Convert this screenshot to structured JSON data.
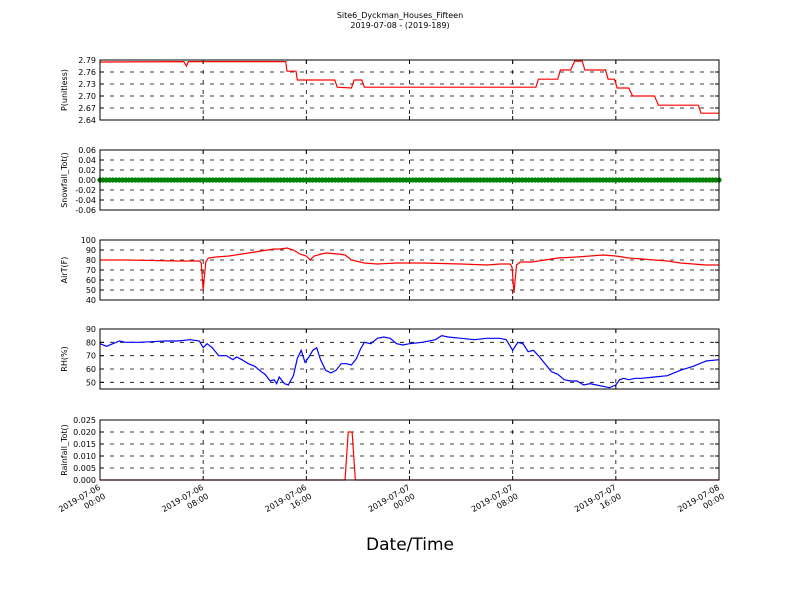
{
  "figure": {
    "title": "Site6_Dyckman_Houses_Fifteen",
    "subtitle": "2019-07-08 - (2019-189)",
    "xlabel": "Date/Time"
  },
  "chart_data": {
    "type": "line",
    "x_range": [
      "2019-07-06 00:00",
      "2019-07-08 00:00"
    ],
    "x_ticks": [
      {
        "x": "2019-07-06 00:00",
        "line1": "2019-07-06",
        "line2": "00:00"
      },
      {
        "x": "2019-07-06 08:00",
        "line1": "2019-07-06",
        "line2": "08:00"
      },
      {
        "x": "2019-07-06 16:00",
        "line1": "2019-07-06",
        "line2": "16:00"
      },
      {
        "x": "2019-07-07 00:00",
        "line1": "2019-07-07",
        "line2": "00:00"
      },
      {
        "x": "2019-07-07 08:00",
        "line1": "2019-07-07",
        "line2": "08:00"
      },
      {
        "x": "2019-07-07 16:00",
        "line1": "2019-07-07",
        "line2": "16:00"
      },
      {
        "x": "2019-07-08 00:00",
        "line1": "2019-07-08",
        "line2": "00:00"
      }
    ],
    "grid": true,
    "panels": [
      {
        "ylabel": "P(unitless)",
        "ylim": [
          2.64,
          2.79
        ],
        "yticks": [
          2.64,
          2.67,
          2.7,
          2.73,
          2.76,
          2.79
        ],
        "tick_decimals": 2,
        "color": "#ff0000",
        "marker": false,
        "points": [
          [
            0,
            2.785
          ],
          [
            6.5,
            2.786
          ],
          [
            6.7,
            2.775
          ],
          [
            6.85,
            2.786
          ],
          [
            14.4,
            2.786
          ],
          [
            14.5,
            2.762
          ],
          [
            15.2,
            2.762
          ],
          [
            15.3,
            2.74
          ],
          [
            18.2,
            2.74
          ],
          [
            18.4,
            2.722
          ],
          [
            19.5,
            2.72
          ],
          [
            19.7,
            2.74
          ],
          [
            20.3,
            2.74
          ],
          [
            20.5,
            2.722
          ],
          [
            33.8,
            2.722
          ],
          [
            34.0,
            2.742
          ],
          [
            35.5,
            2.742
          ],
          [
            35.7,
            2.765
          ],
          [
            36.5,
            2.765
          ],
          [
            36.8,
            2.787
          ],
          [
            37.4,
            2.787
          ],
          [
            37.6,
            2.765
          ],
          [
            39.2,
            2.765
          ],
          [
            39.4,
            2.742
          ],
          [
            39.9,
            2.742
          ],
          [
            40.1,
            2.72
          ],
          [
            41.0,
            2.72
          ],
          [
            41.3,
            2.7
          ],
          [
            43.0,
            2.7
          ],
          [
            43.3,
            2.677
          ],
          [
            46.4,
            2.677
          ],
          [
            46.6,
            2.657
          ],
          [
            48.0,
            2.657
          ]
        ]
      },
      {
        "ylabel": "Snowfall_Tot()",
        "ylim": [
          -0.06,
          0.06
        ],
        "yticks": [
          -0.06,
          -0.04,
          -0.02,
          0.0,
          0.02,
          0.04,
          0.06
        ],
        "tick_decimals": 2,
        "color": "#008000",
        "marker": true,
        "points": [
          [
            0,
            0
          ],
          [
            48,
            0
          ]
        ]
      },
      {
        "ylabel": "AirT(F)",
        "ylim": [
          40,
          100
        ],
        "yticks": [
          40,
          50,
          60,
          70,
          80,
          90,
          100
        ],
        "tick_decimals": 0,
        "color": "#ff0000",
        "marker": false,
        "points": [
          [
            0,
            80
          ],
          [
            2,
            80
          ],
          [
            6,
            79
          ],
          [
            7.7,
            79
          ],
          [
            7.85,
            77
          ],
          [
            8.0,
            50
          ],
          [
            8.2,
            78
          ],
          [
            8.4,
            82
          ],
          [
            9,
            83
          ],
          [
            10,
            84
          ],
          [
            11,
            86
          ],
          [
            12,
            88
          ],
          [
            13,
            90
          ],
          [
            13.5,
            91
          ],
          [
            14,
            91
          ],
          [
            14.5,
            92
          ],
          [
            15,
            90
          ],
          [
            15.5,
            86
          ],
          [
            16,
            84
          ],
          [
            16.3,
            80
          ],
          [
            16.6,
            84
          ],
          [
            17.5,
            87
          ],
          [
            18.5,
            86
          ],
          [
            19,
            85
          ],
          [
            19.5,
            80
          ],
          [
            20.5,
            77
          ],
          [
            21.5,
            76
          ],
          [
            23,
            77
          ],
          [
            25,
            77
          ],
          [
            28,
            76
          ],
          [
            30,
            75
          ],
          [
            31,
            76
          ],
          [
            31.8,
            76
          ],
          [
            31.95,
            73
          ],
          [
            32.1,
            47
          ],
          [
            32.3,
            75
          ],
          [
            32.6,
            78
          ],
          [
            33.5,
            78
          ],
          [
            34.5,
            80
          ],
          [
            35.5,
            82
          ],
          [
            37,
            83
          ],
          [
            38,
            84
          ],
          [
            39,
            85
          ],
          [
            40,
            84
          ],
          [
            41,
            82
          ],
          [
            42,
            81
          ],
          [
            43,
            80
          ],
          [
            44,
            79
          ],
          [
            45,
            77
          ],
          [
            46,
            76
          ],
          [
            47,
            75
          ],
          [
            48,
            75
          ]
        ]
      },
      {
        "ylabel": "RH(%)",
        "ylim": [
          45,
          90
        ],
        "yticks": [
          50,
          60,
          70,
          80,
          90
        ],
        "tick_decimals": 0,
        "color": "#0000ff",
        "marker": false,
        "points": [
          [
            0,
            79
          ],
          [
            0.5,
            77
          ],
          [
            1,
            79
          ],
          [
            1.5,
            81
          ],
          [
            2,
            80
          ],
          [
            3,
            80
          ],
          [
            4,
            80.5
          ],
          [
            5,
            81
          ],
          [
            6,
            81
          ],
          [
            7,
            82
          ],
          [
            7.7,
            81
          ],
          [
            8.0,
            76
          ],
          [
            8.3,
            79
          ],
          [
            8.7,
            76
          ],
          [
            9.2,
            70
          ],
          [
            9.8,
            70
          ],
          [
            10.3,
            67
          ],
          [
            10.6,
            69
          ],
          [
            11,
            67
          ],
          [
            11.5,
            64
          ],
          [
            12,
            62
          ],
          [
            12.5,
            58
          ],
          [
            12.8,
            56
          ],
          [
            13.2,
            51
          ],
          [
            13.5,
            52
          ],
          [
            13.7,
            49
          ],
          [
            13.9,
            54
          ],
          [
            14.3,
            49
          ],
          [
            14.6,
            48
          ],
          [
            15,
            55
          ],
          [
            15.3,
            68
          ],
          [
            15.6,
            74
          ],
          [
            15.9,
            65
          ],
          [
            16.2,
            69
          ],
          [
            16.5,
            74
          ],
          [
            16.8,
            76
          ],
          [
            17.1,
            67
          ],
          [
            17.5,
            59
          ],
          [
            17.9,
            57
          ],
          [
            18.3,
            59
          ],
          [
            18.7,
            64
          ],
          [
            19.1,
            64
          ],
          [
            19.5,
            63
          ],
          [
            19.9,
            68
          ],
          [
            20.2,
            75
          ],
          [
            20.5,
            80
          ],
          [
            21,
            79
          ],
          [
            21.5,
            83
          ],
          [
            22,
            84
          ],
          [
            22.5,
            83
          ],
          [
            23,
            79
          ],
          [
            23.5,
            78
          ],
          [
            24,
            79
          ],
          [
            25,
            80
          ],
          [
            26,
            82
          ],
          [
            26.5,
            85
          ],
          [
            27,
            84
          ],
          [
            28,
            83
          ],
          [
            29,
            82
          ],
          [
            30,
            83
          ],
          [
            31,
            83
          ],
          [
            31.5,
            82
          ],
          [
            32,
            74
          ],
          [
            32.4,
            80
          ],
          [
            32.8,
            79
          ],
          [
            33.2,
            73
          ],
          [
            33.6,
            74
          ],
          [
            34,
            70
          ],
          [
            34.5,
            64
          ],
          [
            35,
            58
          ],
          [
            35.5,
            56
          ],
          [
            36,
            52
          ],
          [
            36.5,
            51
          ],
          [
            37,
            51
          ],
          [
            37.5,
            48
          ],
          [
            38,
            49
          ],
          [
            38.5,
            48
          ],
          [
            39,
            47
          ],
          [
            39.5,
            46
          ],
          [
            40,
            48
          ],
          [
            40.3,
            52
          ],
          [
            40.6,
            53
          ],
          [
            41,
            52
          ],
          [
            41.5,
            53
          ],
          [
            42,
            53
          ],
          [
            43,
            54
          ],
          [
            44,
            55
          ],
          [
            45,
            59
          ],
          [
            46,
            62
          ],
          [
            47,
            66
          ],
          [
            48,
            67
          ]
        ]
      },
      {
        "ylabel": "Rainfall_Tot()",
        "ylim": [
          0.0,
          0.025
        ],
        "yticks": [
          0.0,
          0.005,
          0.01,
          0.015,
          0.02,
          0.025
        ],
        "tick_decimals": 3,
        "color": "#ff0000",
        "marker": false,
        "points": [
          [
            0,
            0
          ],
          [
            19.0,
            0
          ],
          [
            19.25,
            0.02
          ],
          [
            19.55,
            0.02
          ],
          [
            19.8,
            0
          ],
          [
            48,
            0
          ]
        ]
      }
    ]
  }
}
